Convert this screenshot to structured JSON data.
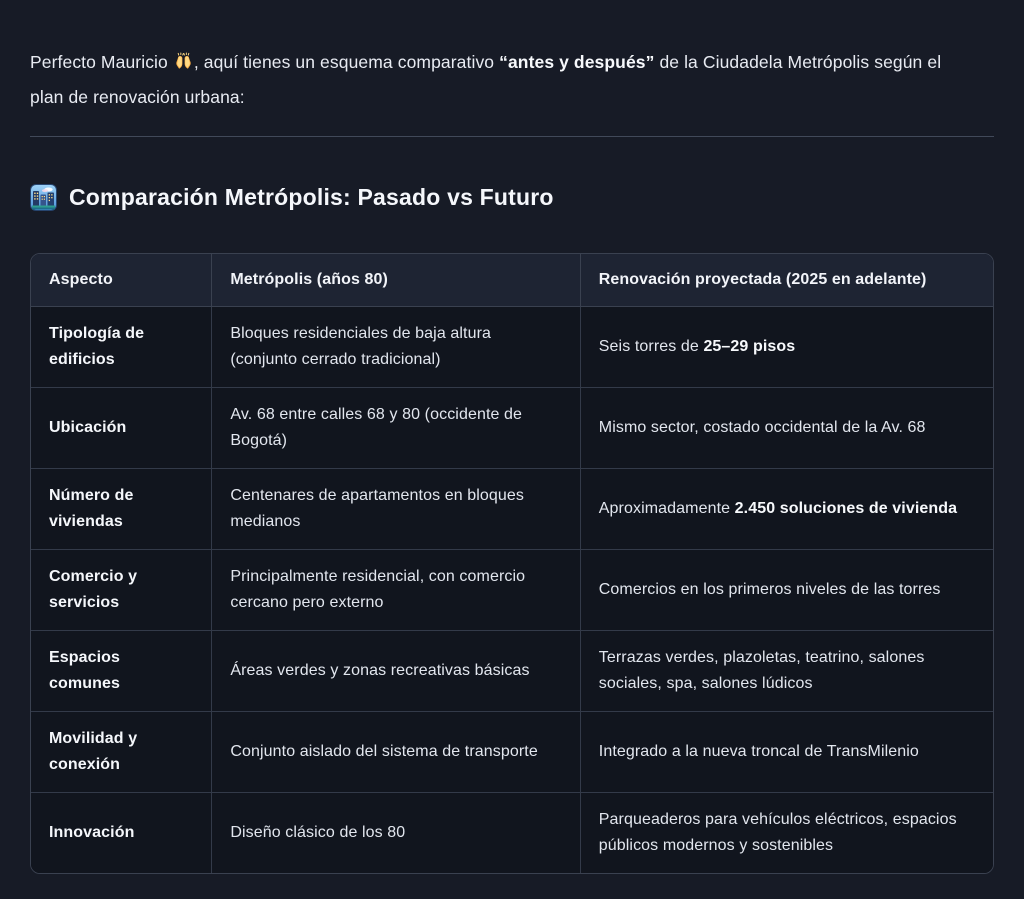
{
  "page": {
    "background": "#171b26"
  },
  "colors": {
    "page_bg": "#171b26",
    "table_header_bg": "#1e2433",
    "table_cell_bg": "#11151e",
    "table_border": "#3a4150",
    "text_regular": "#e8ebf2",
    "text_bold": "#f7f9fc"
  },
  "icons": {
    "raising_hands": {
      "name": "raising-hands-icon",
      "unicode": "🙌"
    },
    "cityscape": {
      "name": "cityscape-icon",
      "unicode": "🏙️"
    }
  },
  "intro": {
    "text_before": "Perfecto Mauricio ",
    "text_after_emoji": ", aquí tienes un esquema comparativo ",
    "bold": "“antes y después”",
    "text_end": " de la Ciudadela Metrópolis según el plan de renovación urbana:"
  },
  "heading": {
    "title": "Comparación Metrópolis: Pasado vs Futuro"
  },
  "table": {
    "columns": [
      "Aspecto",
      "Metrópolis (años 80)",
      "Renovación proyectada (2025 en adelante)"
    ],
    "rows": [
      {
        "aspect": "Tipología de edificios",
        "past": "Bloques residenciales de baja altura (conjunto cerrado tradicional)",
        "future": [
          {
            "text": "Seis torres de ",
            "bold": false
          },
          {
            "text": "25–29 pisos",
            "bold": true
          }
        ]
      },
      {
        "aspect": "Ubicación",
        "past": "Av. 68 entre calles 68 y 80 (occidente de Bogotá)",
        "future": [
          {
            "text": "Mismo sector, costado occidental de la Av. 68",
            "bold": false
          }
        ]
      },
      {
        "aspect": "Número de viviendas",
        "past": "Centenares de apartamentos en bloques medianos",
        "future": [
          {
            "text": "Aproximadamente ",
            "bold": false
          },
          {
            "text": "2.450 soluciones de vivienda",
            "bold": true
          }
        ]
      },
      {
        "aspect": "Comercio y servicios",
        "past": "Principalmente residencial, con comercio cercano pero externo",
        "future": [
          {
            "text": "Comercios en los primeros niveles de las torres",
            "bold": false
          }
        ]
      },
      {
        "aspect": "Espacios comunes",
        "past": "Áreas verdes y zonas recreativas básicas",
        "future": [
          {
            "text": "Terrazas verdes, plazoletas, teatrino, salones sociales, spa, salones lúdicos",
            "bold": false
          }
        ]
      },
      {
        "aspect": "Movilidad y conexión",
        "past": "Conjunto aislado del sistema de transporte",
        "future": [
          {
            "text": "Integrado a la nueva troncal de TransMilenio",
            "bold": false
          }
        ]
      },
      {
        "aspect": "Innovación",
        "past": "Diseño clásico de los 80",
        "future": [
          {
            "text": "Parqueaderos para vehículos eléctricos, espacios públicos modernos y sostenibles",
            "bold": false
          }
        ]
      }
    ]
  }
}
